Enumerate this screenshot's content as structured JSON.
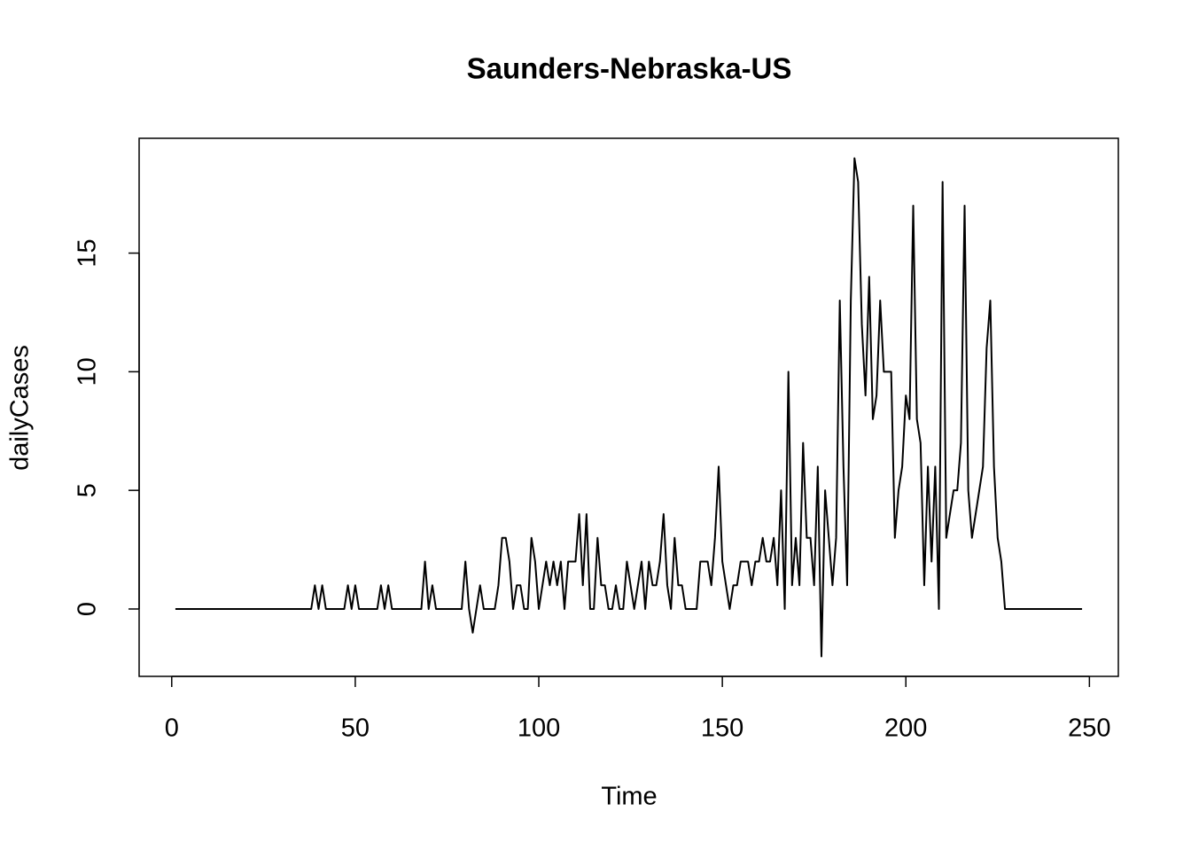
{
  "chart_data": {
    "type": "line",
    "title": "Saunders-Nebraska-US",
    "xlabel": "Time",
    "ylabel": "dailyCases",
    "x": [
      1,
      2,
      3,
      4,
      5,
      6,
      7,
      8,
      9,
      10,
      11,
      12,
      13,
      14,
      15,
      16,
      17,
      18,
      19,
      20,
      21,
      22,
      23,
      24,
      25,
      26,
      27,
      28,
      29,
      30,
      31,
      32,
      33,
      34,
      35,
      36,
      37,
      38,
      39,
      40,
      41,
      42,
      43,
      44,
      45,
      46,
      47,
      48,
      49,
      50,
      51,
      52,
      53,
      54,
      55,
      56,
      57,
      58,
      59,
      60,
      61,
      62,
      63,
      64,
      65,
      66,
      67,
      68,
      69,
      70,
      71,
      72,
      73,
      74,
      75,
      76,
      77,
      78,
      79,
      80,
      81,
      82,
      83,
      84,
      85,
      86,
      87,
      88,
      89,
      90,
      91,
      92,
      93,
      94,
      95,
      96,
      97,
      98,
      99,
      100,
      101,
      102,
      103,
      104,
      105,
      106,
      107,
      108,
      109,
      110,
      111,
      112,
      113,
      114,
      115,
      116,
      117,
      118,
      119,
      120,
      121,
      122,
      123,
      124,
      125,
      126,
      127,
      128,
      129,
      130,
      131,
      132,
      133,
      134,
      135,
      136,
      137,
      138,
      139,
      140,
      141,
      142,
      143,
      144,
      145,
      146,
      147,
      148,
      149,
      150,
      151,
      152,
      153,
      154,
      155,
      156,
      157,
      158,
      159,
      160,
      161,
      162,
      163,
      164,
      165,
      166,
      167,
      168,
      169,
      170,
      171,
      172,
      173,
      174,
      175,
      176,
      177,
      178,
      179,
      180,
      181,
      182,
      183,
      184,
      185,
      186,
      187,
      188,
      189,
      190,
      191,
      192,
      193,
      194,
      195,
      196,
      197,
      198,
      199,
      200,
      201,
      202,
      203,
      204,
      205,
      206,
      207,
      208,
      209,
      210,
      211,
      212,
      213,
      214,
      215,
      216,
      217,
      218,
      219,
      220,
      221,
      222,
      223,
      224,
      225,
      226,
      227,
      228,
      229,
      230,
      231,
      232,
      233,
      234,
      235,
      236,
      237,
      238,
      239,
      240,
      241,
      242,
      243,
      244,
      245,
      246,
      247,
      248
    ],
    "series": [
      {
        "color": "#000000",
        "values": [
          0,
          0,
          0,
          0,
          0,
          0,
          0,
          0,
          0,
          0,
          0,
          0,
          0,
          0,
          0,
          0,
          0,
          0,
          0,
          0,
          0,
          0,
          0,
          0,
          0,
          0,
          0,
          0,
          0,
          0,
          0,
          0,
          0,
          0,
          0,
          0,
          0,
          0,
          1,
          0,
          1,
          0,
          0,
          0,
          0,
          0,
          0,
          1,
          0,
          1,
          0,
          0,
          0,
          0,
          0,
          0,
          1,
          0,
          1,
          0,
          0,
          0,
          0,
          0,
          0,
          0,
          0,
          0,
          2,
          0,
          1,
          0,
          0,
          0,
          0,
          0,
          0,
          0,
          0,
          2,
          0,
          -1,
          0,
          1,
          0,
          0,
          0,
          0,
          1,
          3,
          3,
          2,
          0,
          1,
          1,
          0,
          0,
          3,
          2,
          0,
          1,
          2,
          1,
          2,
          1,
          2,
          0,
          2,
          2,
          2,
          4,
          1,
          4,
          0,
          0,
          3,
          1,
          1,
          0,
          0,
          1,
          0,
          0,
          2,
          1,
          0,
          1,
          2,
          0,
          2,
          1,
          1,
          2,
          4,
          1,
          0,
          3,
          1,
          1,
          0,
          0,
          0,
          0,
          2,
          2,
          2,
          1,
          3,
          6,
          2,
          1,
          0,
          1,
          1,
          2,
          2,
          2,
          1,
          2,
          2,
          3,
          2,
          2,
          3,
          1,
          5,
          0,
          10,
          1,
          3,
          1,
          7,
          3,
          3,
          1,
          6,
          -2,
          5,
          3,
          1,
          3,
          13,
          6,
          1,
          13,
          19,
          18,
          12,
          9,
          14,
          8,
          9,
          13,
          10,
          10,
          10,
          3,
          5,
          6,
          9,
          8,
          17,
          8,
          7,
          1,
          6,
          2,
          6,
          0,
          18,
          3,
          4,
          5,
          5,
          7,
          17,
          5,
          3,
          4,
          5,
          6,
          11,
          13,
          6,
          3,
          2,
          0,
          0,
          0,
          0,
          0,
          0,
          0,
          0,
          0,
          0,
          0,
          0,
          0,
          0,
          0,
          0,
          0,
          0,
          0,
          0,
          0,
          0
        ]
      }
    ],
    "xlim": [
      -8.88,
      257.88
    ],
    "ylim": [
      -2.84,
      19.84
    ],
    "xticks": [
      0,
      50,
      100,
      150,
      200,
      250
    ],
    "yticks": [
      0,
      5,
      10,
      15
    ],
    "grid": false
  }
}
